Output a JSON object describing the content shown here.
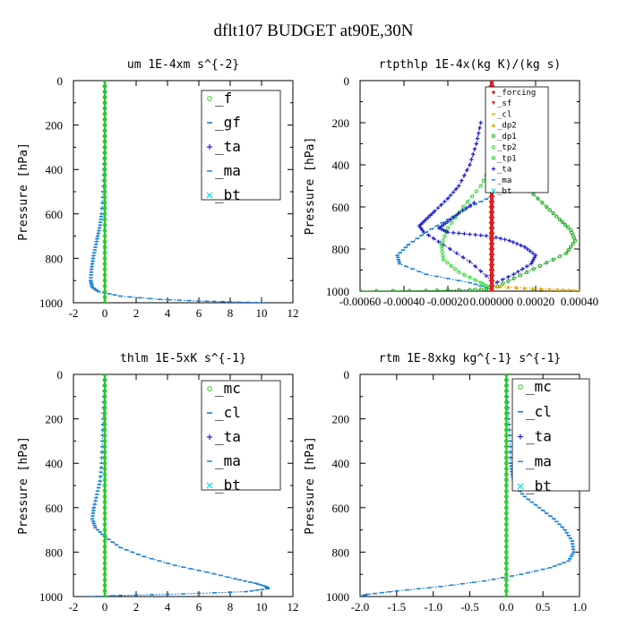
{
  "figure_title": "dflt107  BUDGET at90E,30N",
  "colors": {
    "f": "#22cc22",
    "gf": "#1a7fd4",
    "ta": "#2222cc",
    "ma": "#2a90e0",
    "bt": "#22e0e0",
    "mc": "#22cc22",
    "cl": "#1a7fd4",
    "forcing": "#dd2222",
    "sf": "#ee3333",
    "dp2": "#ddaa00",
    "dp1": "#22aa22",
    "tp2": "#33dd33",
    "tp1": "#22bb22"
  },
  "chart_data": [
    {
      "type": "line",
      "title": "um  1E-4xm s^{-2}",
      "ylabel": "Pressure [hPa]",
      "xlim": [
        -2,
        12
      ],
      "ylim": [
        1000,
        0
      ],
      "xticks": [
        "-2",
        "0",
        "2",
        "4",
        "6",
        "8",
        "10",
        "12"
      ],
      "xtick_values": [
        -2,
        0,
        2,
        4,
        6,
        8,
        10,
        12
      ],
      "yticks": [
        "0",
        "200",
        "400",
        "600",
        "800",
        "1000"
      ],
      "ytick_values": [
        0,
        200,
        400,
        600,
        800,
        1000
      ],
      "legend_style": "big",
      "legend_entries": [
        {
          "label": "_f",
          "color_key": "f"
        },
        {
          "label": "_gf",
          "color_key": "gf"
        },
        {
          "label": "_ta",
          "color_key": "ta"
        },
        {
          "label": "_ma",
          "color_key": "ma"
        },
        {
          "label": "_bt",
          "color_key": "bt"
        }
      ],
      "series": [
        {
          "color_key": "gf",
          "x": [
            0,
            0,
            0,
            0,
            -0.05,
            -0.1,
            -0.2,
            -0.3,
            -0.45,
            -0.6,
            -0.75,
            -0.85,
            -0.9,
            -0.8,
            -0.4,
            1.0,
            3.5,
            6.0,
            8.0,
            10.2
          ],
          "y": [
            0,
            100,
            200,
            300,
            400,
            500,
            600,
            650,
            700,
            750,
            800,
            850,
            900,
            930,
            950,
            970,
            985,
            992,
            996,
            1000
          ]
        },
        {
          "color_key": "f",
          "x": [
            0,
            0
          ],
          "y": [
            0,
            1000
          ]
        }
      ]
    },
    {
      "type": "line",
      "title": "rtpthlp  1E-4x(kg K)/(kg s)",
      "ylabel": "Pressure [hPa]",
      "xlim": [
        -0.0006,
        0.0004
      ],
      "ylim": [
        1000,
        0
      ],
      "xticks": [
        "-0.00060",
        "-0.00040",
        "-0.00020",
        "0.000000",
        "0.00020",
        "0.00040"
      ],
      "xtick_values": [
        -0.0006,
        -0.0004,
        -0.0002,
        0.0,
        0.0002,
        0.0004
      ],
      "yticks": [
        "0",
        "200",
        "400",
        "600",
        "800",
        "1000"
      ],
      "ytick_values": [
        0,
        200,
        400,
        600,
        800,
        1000
      ],
      "legend_style": "small",
      "legend_entries": [
        {
          "label": "_forcing",
          "color_key": "forcing"
        },
        {
          "label": "_sf",
          "color_key": "sf"
        },
        {
          "label": "_cl",
          "color_key": "dp2"
        },
        {
          "label": "_dp2",
          "color_key": "dp2"
        },
        {
          "label": "_dp1",
          "color_key": "dp1"
        },
        {
          "label": "_tp2",
          "color_key": "tp2"
        },
        {
          "label": "_tp1",
          "color_key": "tp1"
        },
        {
          "label": "_ta",
          "color_key": "ta"
        },
        {
          "label": "_ma",
          "color_key": "ma"
        },
        {
          "label": "_bt",
          "color_key": "bt"
        }
      ],
      "series": [
        {
          "color_key": "ta",
          "x": [
            -5e-05,
            -7e-05,
            -0.0001,
            -0.00015,
            -0.0002,
            -0.00026,
            -0.0003,
            -0.00033,
            -0.00031,
            -0.00022,
            -0.0001,
            0.0
          ],
          "y": [
            200,
            300,
            400,
            500,
            560,
            620,
            660,
            690,
            720,
            780,
            860,
            950
          ]
        },
        {
          "color_key": "gf",
          "x": [
            0.0,
            -0.0001,
            -0.0002,
            -0.0003,
            -0.00038,
            -0.00043,
            -0.00042,
            -0.0003,
            -0.0001,
            0.0
          ],
          "y": [
            550,
            600,
            660,
            720,
            780,
            830,
            870,
            920,
            960,
            990
          ]
        },
        {
          "color_key": "tp2",
          "x": [
            0.0,
            -5e-05,
            -0.00013,
            -0.0002,
            -0.00023,
            -0.00022,
            -0.00015,
            -5e-05,
            0.0
          ],
          "y": [
            400,
            500,
            600,
            700,
            780,
            850,
            910,
            960,
            990
          ]
        },
        {
          "color_key": "dp1",
          "x": [
            0.0,
            2e-05,
            8e-05,
            0.00017,
            0.00025,
            0.00031,
            0.00036,
            0.00038,
            0.00034,
            0.00022,
            0.0001,
            0.0
          ],
          "y": [
            180,
            300,
            420,
            520,
            600,
            660,
            710,
            760,
            820,
            880,
            940,
            990
          ]
        },
        {
          "color_key": "ta",
          "x": [
            -8e-05,
            -0.00015,
            -0.0002,
            -0.00024,
            -0.0002,
            -0.0001,
            0.0,
            8e-05,
            0.00015,
            0.0002,
            0.00018,
            0.0001,
            0.0
          ],
          "y": [
            580,
            630,
            670,
            700,
            720,
            730,
            740,
            760,
            790,
            830,
            870,
            920,
            970
          ]
        },
        {
          "color_key": "dp2",
          "x": [
            0.0,
            0.00015,
            0.0003,
            0.0004
          ],
          "y": [
            975,
            985,
            992,
            998
          ]
        },
        {
          "color_key": "dp1",
          "x": [
            -0.0006,
            -0.0003,
            -0.0001,
            0.0
          ],
          "y": [
            1000,
            998,
            994,
            990
          ]
        },
        {
          "color_key": "forcing",
          "x": [
            0.0,
            0.0
          ],
          "y": [
            0,
            1000
          ]
        }
      ]
    },
    {
      "type": "line",
      "title": "thlm  1E-5xK s^{-1}",
      "ylabel": "Pressure [hPa]",
      "xlim": [
        -2,
        12
      ],
      "ylim": [
        1000,
        0
      ],
      "xticks": [
        "-2",
        "0",
        "2",
        "4",
        "6",
        "8",
        "10",
        "12"
      ],
      "xtick_values": [
        -2,
        0,
        2,
        4,
        6,
        8,
        10,
        12
      ],
      "yticks": [
        "0",
        "200",
        "400",
        "600",
        "800",
        "1000"
      ],
      "ytick_values": [
        0,
        200,
        400,
        600,
        800,
        1000
      ],
      "legend_style": "big",
      "legend_entries": [
        {
          "label": "_mc",
          "color_key": "mc"
        },
        {
          "label": "_cl",
          "color_key": "cl"
        },
        {
          "label": "_ta",
          "color_key": "ta"
        },
        {
          "label": "_ma",
          "color_key": "ma"
        },
        {
          "label": "_bt",
          "color_key": "bt"
        }
      ],
      "series": [
        {
          "color_key": "cl",
          "x": [
            0,
            -0.05,
            -0.1,
            -0.15,
            -0.2,
            -0.3,
            -0.5,
            -0.7,
            -0.8,
            -0.6,
            0.0,
            1.0,
            2.5,
            4.5,
            6.5,
            8.3,
            9.6,
            10.3,
            10.4,
            9.0,
            5.0,
            1.0,
            -1.0
          ],
          "y": [
            0,
            100,
            200,
            300,
            400,
            480,
            540,
            600,
            650,
            690,
            730,
            780,
            820,
            860,
            890,
            920,
            940,
            955,
            965,
            978,
            988,
            995,
            1000
          ]
        },
        {
          "color_key": "mc",
          "x": [
            0,
            0
          ],
          "y": [
            0,
            1000
          ]
        }
      ]
    },
    {
      "type": "line",
      "title": "rtm  1E-8xkg kg^{-1} s^{-1}",
      "ylabel": "Pressure [hPa]",
      "xlim": [
        -2.0,
        1.0
      ],
      "ylim": [
        1000,
        0
      ],
      "xticks": [
        "-2.0",
        "-1.5",
        "-1.0",
        "-0.5",
        "0.0",
        "0.5",
        "1.0"
      ],
      "xtick_values": [
        -2.0,
        -1.5,
        -1.0,
        -0.5,
        0.0,
        0.5,
        1.0
      ],
      "yticks": [
        "0",
        "200",
        "400",
        "600",
        "800",
        "1000"
      ],
      "ytick_values": [
        0,
        200,
        400,
        600,
        800,
        1000
      ],
      "legend_style": "big",
      "legend_entries": [
        {
          "label": "_mc",
          "color_key": "mc"
        },
        {
          "label": "_cl",
          "color_key": "cl"
        },
        {
          "label": "_ta",
          "color_key": "ta"
        },
        {
          "label": "_ma",
          "color_key": "ma"
        },
        {
          "label": "_bt",
          "color_key": "bt"
        }
      ],
      "series": [
        {
          "color_key": "cl",
          "x": [
            0.0,
            0.01,
            0.03,
            0.05,
            0.06,
            0.08,
            0.12,
            0.25,
            0.45,
            0.65,
            0.8,
            0.9,
            0.92,
            0.85,
            0.6,
            0.2,
            -0.3,
            -0.9,
            -1.5,
            -1.9,
            -2.0
          ],
          "y": [
            0,
            100,
            200,
            300,
            400,
            450,
            500,
            550,
            600,
            650,
            700,
            750,
            800,
            840,
            870,
            900,
            930,
            955,
            975,
            990,
            1000
          ]
        },
        {
          "color_key": "mc",
          "x": [
            0,
            0
          ],
          "y": [
            0,
            1000
          ]
        }
      ]
    }
  ]
}
